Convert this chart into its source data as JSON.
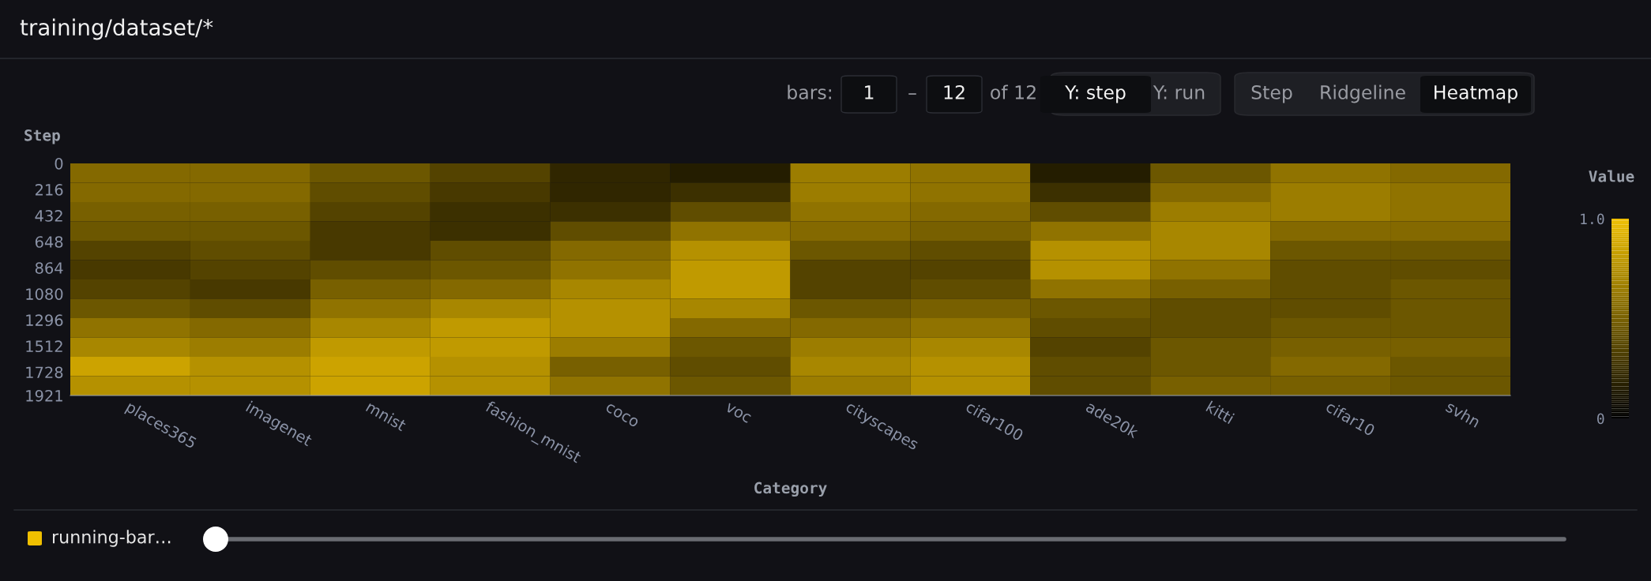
{
  "chart_data": {
    "type": "heatmap",
    "title": "training/dataset/*",
    "xlabel": "Category",
    "ylabel": "Step",
    "clabel": "Value",
    "categories": [
      "places365",
      "imagenet",
      "mnist",
      "fashion_mnist",
      "coco",
      "voc",
      "cityscapes",
      "cifar100",
      "ade20k",
      "kitti",
      "cifar10",
      "svhn"
    ],
    "ylim": [
      1921,
      0
    ],
    "yticks": [
      0,
      216,
      432,
      648,
      864,
      1080,
      1296,
      1512,
      1728,
      1921
    ],
    "clim": [
      0,
      1
    ],
    "cticks": [
      {
        "value": 0,
        "label": "0"
      },
      {
        "value": 1,
        "label": "1.0"
      }
    ],
    "cells": [
      [
        0.55,
        0.55,
        0.45,
        0.35,
        0.2,
        0.15,
        0.65,
        0.6,
        0.15,
        0.45,
        0.6,
        0.55
      ],
      [
        0.55,
        0.55,
        0.4,
        0.3,
        0.2,
        0.25,
        0.65,
        0.6,
        0.25,
        0.55,
        0.65,
        0.6
      ],
      [
        0.5,
        0.5,
        0.35,
        0.25,
        0.25,
        0.4,
        0.6,
        0.55,
        0.4,
        0.65,
        0.65,
        0.6
      ],
      [
        0.45,
        0.45,
        0.3,
        0.25,
        0.4,
        0.6,
        0.55,
        0.5,
        0.6,
        0.7,
        0.55,
        0.55
      ],
      [
        0.35,
        0.4,
        0.3,
        0.4,
        0.55,
        0.75,
        0.45,
        0.4,
        0.75,
        0.7,
        0.45,
        0.45
      ],
      [
        0.3,
        0.35,
        0.4,
        0.45,
        0.6,
        0.8,
        0.35,
        0.35,
        0.75,
        0.6,
        0.4,
        0.4
      ],
      [
        0.35,
        0.3,
        0.5,
        0.55,
        0.7,
        0.8,
        0.35,
        0.4,
        0.6,
        0.5,
        0.4,
        0.45
      ],
      [
        0.45,
        0.4,
        0.6,
        0.7,
        0.75,
        0.7,
        0.45,
        0.5,
        0.45,
        0.4,
        0.4,
        0.45
      ],
      [
        0.6,
        0.55,
        0.7,
        0.8,
        0.75,
        0.55,
        0.55,
        0.6,
        0.4,
        0.4,
        0.45,
        0.45
      ],
      [
        0.7,
        0.65,
        0.8,
        0.8,
        0.65,
        0.45,
        0.65,
        0.7,
        0.35,
        0.45,
        0.5,
        0.5
      ],
      [
        0.85,
        0.75,
        0.85,
        0.75,
        0.5,
        0.4,
        0.7,
        0.75,
        0.4,
        0.45,
        0.55,
        0.45
      ],
      [
        0.75,
        0.75,
        0.85,
        0.75,
        0.6,
        0.45,
        0.65,
        0.75,
        0.4,
        0.5,
        0.5,
        0.45
      ]
    ],
    "annotations": [
      "bars:",
      "1",
      "–",
      "12",
      "of 12",
      "Y: step",
      "Y: run",
      "Step",
      "Ridgeline",
      "Heatmap",
      "running-bar…"
    ]
  }
}
